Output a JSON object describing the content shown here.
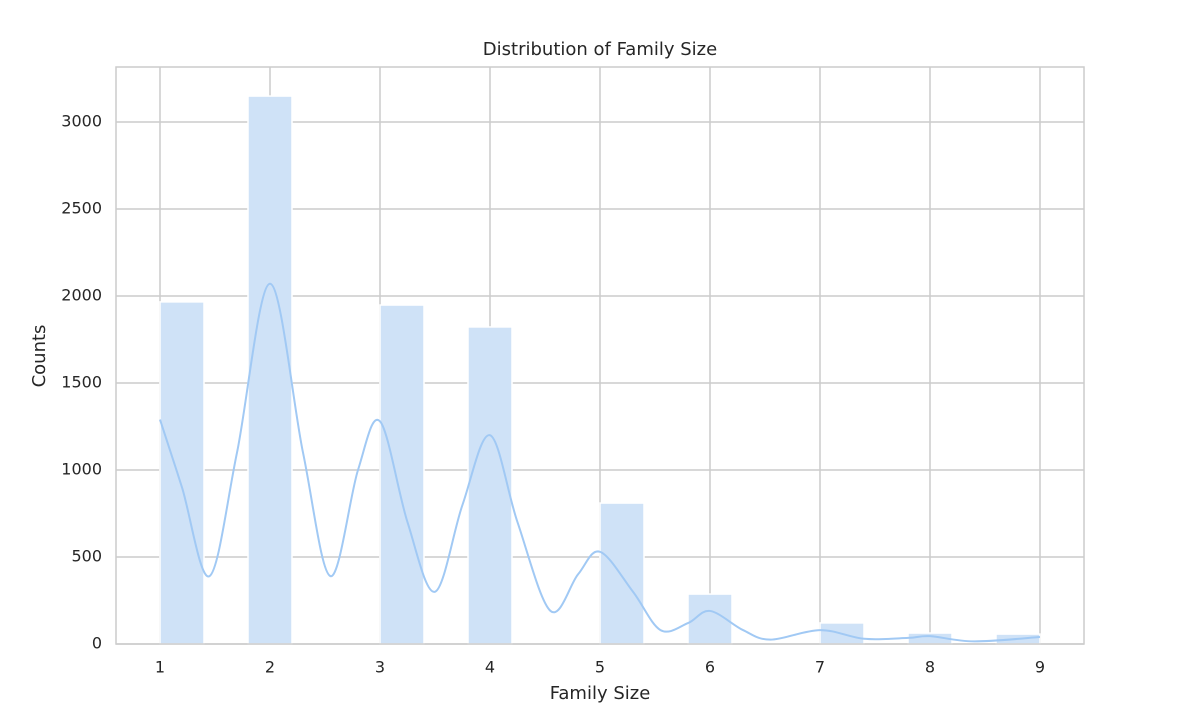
{
  "chart_data": {
    "type": "histogram",
    "title": "Distribution of Family Size",
    "xlabel": "Family Size",
    "ylabel": "Counts",
    "bins": [
      1,
      1.4,
      1.8,
      2.2,
      2.6,
      3.0,
      3.4,
      3.8,
      4.2,
      4.6,
      5.0,
      5.4,
      5.8,
      6.2,
      6.6,
      7.0,
      7.4,
      7.8,
      8.2,
      8.6,
      9.0
    ],
    "values": [
      1966,
      0,
      3149,
      0,
      0,
      1948,
      0,
      1822,
      0,
      0,
      810,
      0,
      287,
      0,
      0,
      121,
      0,
      63,
      0,
      57
    ],
    "color": "#cfe2f7",
    "kde": {
      "color": "#a1c9f4",
      "x": [
        1,
        1.2,
        1.45,
        1.7,
        2,
        2.3,
        2.55,
        2.8,
        3,
        3.25,
        3.5,
        3.75,
        4,
        4.25,
        4.55,
        4.8,
        5,
        5.3,
        5.55,
        5.8,
        6,
        6.3,
        6.55,
        7,
        7.4,
        7.8,
        8,
        8.4,
        9
      ],
      "values": [
        1290,
        900,
        390,
        1100,
        2070,
        1100,
        390,
        1000,
        1280,
        700,
        300,
        800,
        1200,
        700,
        190,
        400,
        530,
        300,
        80,
        120,
        190,
        80,
        25,
        80,
        30,
        35,
        45,
        15,
        40
      ]
    },
    "xlim": [
      0.6,
      9.4
    ],
    "ylim": [
      0,
      3316
    ],
    "xticks": [
      1,
      2,
      3,
      4,
      5,
      6,
      7,
      8,
      9
    ],
    "yticks": [
      0,
      500,
      1000,
      1500,
      2000,
      2500,
      3000
    ],
    "grid": true
  }
}
